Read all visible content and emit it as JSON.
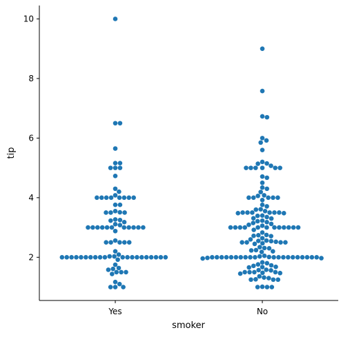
{
  "chart_data": {
    "type": "scatter",
    "kind": "swarm",
    "xlabel": "smoker",
    "ylabel": "tip",
    "categories": [
      "Yes",
      "No"
    ],
    "ylim": [
      0.55,
      10.45
    ],
    "yticks": [
      2,
      4,
      6,
      8,
      10
    ],
    "grid": false,
    "legend": "none",
    "point_color": "#1f77b4",
    "series": [
      {
        "values": [
          10.0,
          6.5,
          6.5,
          5.65,
          5.16,
          5.16,
          5.0,
          5.0,
          5.0,
          4.73,
          4.3,
          4.2,
          4.0,
          4.0,
          4.0,
          4.0,
          4.0,
          4.0,
          4.0,
          4.0,
          4.08,
          3.76,
          3.76,
          3.51,
          3.5,
          3.5,
          3.5,
          3.55,
          3.27,
          3.25,
          3.18,
          3.23,
          3.11,
          3.08,
          3.0,
          3.0,
          3.0,
          3.0,
          3.0,
          3.0,
          3.0,
          3.0,
          3.0,
          3.0,
          3.0,
          2.88,
          2.56,
          2.5,
          2.5,
          2.5,
          2.5,
          2.5,
          2.2,
          2.09,
          2.03,
          2.03,
          2.0,
          2.0,
          2.0,
          2.0,
          2.0,
          2.0,
          2.0,
          2.0,
          2.0,
          2.0,
          2.0,
          2.0,
          2.0,
          2.0,
          2.0,
          2.0,
          2.0,
          2.0,
          2.0,
          2.0,
          1.92,
          1.75,
          1.64,
          1.61,
          1.58,
          1.5,
          1.5,
          1.5,
          1.44,
          1.17,
          1.1,
          1.0,
          1.0,
          1.0
        ]
      },
      {
        "values": [
          9.0,
          7.58,
          6.73,
          6.7,
          6.0,
          5.92,
          5.85,
          5.6,
          5.2,
          5.14,
          5.15,
          5.07,
          5.0,
          5.0,
          5.0,
          5.0,
          5.0,
          5.0,
          4.71,
          4.67,
          4.5,
          4.34,
          4.3,
          4.19,
          4.08,
          4.06,
          4.0,
          4.0,
          4.0,
          4.0,
          4.0,
          3.92,
          3.76,
          3.71,
          3.61,
          3.6,
          3.55,
          3.5,
          3.5,
          3.5,
          3.5,
          3.5,
          3.5,
          3.48,
          3.48,
          3.4,
          3.39,
          3.35,
          3.31,
          3.3,
          3.23,
          3.21,
          3.18,
          3.15,
          3.12,
          3.09,
          3.06,
          3.0,
          3.0,
          3.0,
          3.0,
          3.0,
          3.0,
          3.0,
          3.0,
          3.0,
          3.0,
          3.0,
          3.0,
          2.92,
          2.83,
          2.75,
          2.74,
          2.72,
          2.71,
          2.64,
          2.6,
          2.56,
          2.55,
          2.54,
          2.52,
          2.5,
          2.5,
          2.5,
          2.5,
          2.47,
          2.45,
          2.34,
          2.31,
          2.3,
          2.24,
          2.23,
          2.2,
          2.18,
          2.05,
          2.03,
          2.01,
          2.0,
          2.0,
          2.0,
          2.0,
          2.0,
          2.0,
          2.0,
          2.0,
          2.0,
          2.0,
          2.0,
          2.0,
          2.0,
          2.0,
          2.0,
          2.0,
          2.0,
          2.0,
          2.0,
          2.0,
          1.98,
          1.97,
          1.96,
          1.83,
          1.8,
          1.76,
          1.73,
          1.71,
          1.68,
          1.67,
          1.66,
          1.58,
          1.56,
          1.57,
          1.5,
          1.5,
          1.5,
          1.5,
          1.48,
          1.47,
          1.45,
          1.36,
          1.32,
          1.3,
          1.26,
          1.25,
          1.25,
          1.25,
          1.01,
          1.0,
          1.0,
          1.0
        ]
      }
    ]
  }
}
